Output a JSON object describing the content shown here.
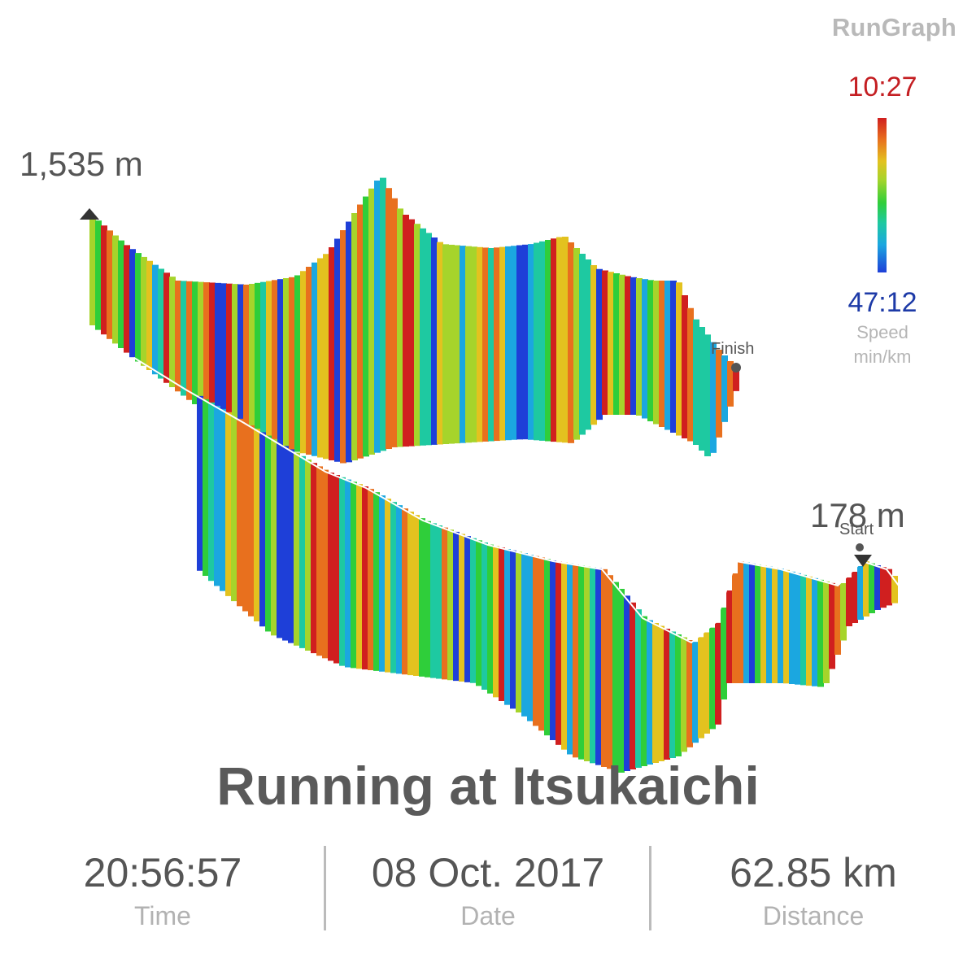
{
  "app": {
    "brand": "RunGraph"
  },
  "legend": {
    "max_pace": "10:27",
    "min_pace": "47:12",
    "caption_line1": "Speed",
    "caption_line2": "min/km",
    "max_color": "#c41e22",
    "min_color": "#1d3aa7"
  },
  "elevation": {
    "max_label": "1,535 m",
    "min_label": "178 m"
  },
  "markers": {
    "finish": "Finish",
    "start": "Start"
  },
  "activity": {
    "title": "Running at Itsukaichi"
  },
  "stats": {
    "time": {
      "value": "20:56:57",
      "label": "Time"
    },
    "date": {
      "value": "08 Oct. 2017",
      "label": "Date"
    },
    "distance": {
      "value": "62.85 km",
      "label": "Distance"
    }
  },
  "palette": {
    "speed_scale": [
      "#d01f1f",
      "#e8701e",
      "#e3c21f",
      "#a6d42b",
      "#2fce3a",
      "#1ec9a1",
      "#1ba7e0",
      "#1e3fd8"
    ]
  }
}
